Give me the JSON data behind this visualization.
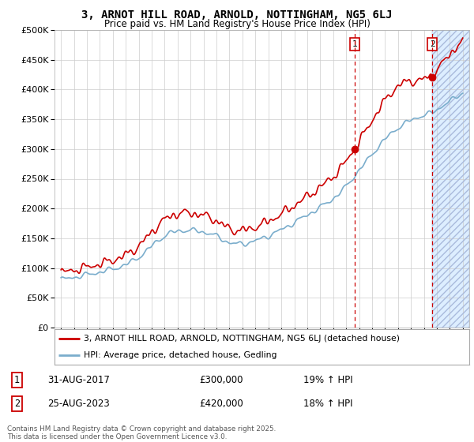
{
  "title": "3, ARNOT HILL ROAD, ARNOLD, NOTTINGHAM, NG5 6LJ",
  "subtitle": "Price paid vs. HM Land Registry's House Price Index (HPI)",
  "ylim": [
    0,
    500000
  ],
  "yticks": [
    0,
    50000,
    100000,
    150000,
    200000,
    250000,
    300000,
    350000,
    400000,
    450000,
    500000
  ],
  "ytick_labels": [
    "£0",
    "£50K",
    "£100K",
    "£150K",
    "£200K",
    "£250K",
    "£300K",
    "£350K",
    "£400K",
    "£450K",
    "£500K"
  ],
  "xlim_start": 1994.5,
  "xlim_end": 2026.5,
  "red_line_color": "#cc0000",
  "blue_line_color": "#7aadcc",
  "vline1_x": 2017.67,
  "vline2_x": 2023.65,
  "vline_color": "#cc0000",
  "shade_start": 2023.65,
  "shade_end": 2026.5,
  "shade_color": "#ddeeff",
  "legend_label1": "3, ARNOT HILL ROAD, ARNOLD, NOTTINGHAM, NG5 6LJ (detached house)",
  "legend_label2": "HPI: Average price, detached house, Gedling",
  "annotation1_num": "1",
  "annotation1_date": "31-AUG-2017",
  "annotation1_price": "£300,000",
  "annotation1_hpi": "19% ↑ HPI",
  "annotation2_num": "2",
  "annotation2_date": "25-AUG-2023",
  "annotation2_price": "£420,000",
  "annotation2_hpi": "18% ↑ HPI",
  "copyright": "Contains HM Land Registry data © Crown copyright and database right 2025.\nThis data is licensed under the Open Government Licence v3.0.",
  "bg_color": "#ffffff",
  "grid_color": "#cccccc",
  "sale_point1_x": 2017.67,
  "sale_point1_y": 300000,
  "sale_point2_x": 2023.65,
  "sale_point2_y": 420000
}
